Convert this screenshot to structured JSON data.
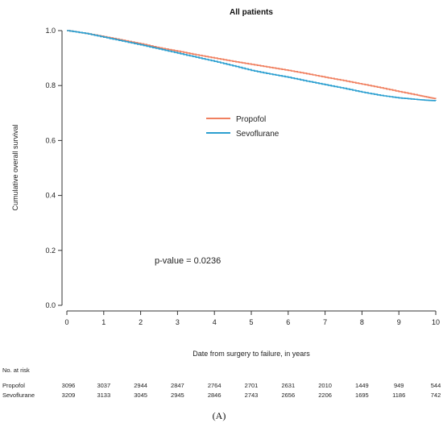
{
  "chart_data": {
    "type": "line",
    "title": "All patients",
    "xlabel": "Date from surgery to failure, in years",
    "ylabel": "Cumulative overall survival",
    "xlim": [
      0,
      10
    ],
    "ylim": [
      0,
      1
    ],
    "xticks": [
      "0",
      "1",
      "2",
      "3",
      "4",
      "5",
      "6",
      "7",
      "8",
      "9",
      "10"
    ],
    "yticks": [
      "0.0",
      "0.2",
      "0.4",
      "0.6",
      "0.8",
      "1.0"
    ],
    "legend_position": "center",
    "legend": [
      "Propofol",
      "Sevoflurane"
    ],
    "annotation": "p-value = 0.0236",
    "panel_label": "(A)",
    "series": [
      {
        "name": "Propofol",
        "color": "#f08060",
        "x": [
          0,
          0.5,
          1,
          1.5,
          2,
          2.5,
          3,
          3.5,
          4,
          4.5,
          5,
          5.5,
          6,
          6.5,
          7,
          7.5,
          8,
          8.5,
          9,
          9.5,
          9.8,
          10
        ],
        "y": [
          1.0,
          0.99,
          0.978,
          0.965,
          0.952,
          0.937,
          0.925,
          0.912,
          0.9,
          0.888,
          0.877,
          0.866,
          0.855,
          0.843,
          0.83,
          0.818,
          0.805,
          0.792,
          0.778,
          0.765,
          0.757,
          0.752
        ]
      },
      {
        "name": "Sevoflurane",
        "color": "#2b9fd0",
        "x": [
          0,
          0.5,
          1,
          1.5,
          2,
          2.5,
          3,
          3.5,
          4,
          4.5,
          5,
          5.5,
          6,
          6.5,
          7,
          7.5,
          8,
          8.5,
          9,
          9.5,
          9.8,
          10
        ],
        "y": [
          1.0,
          0.99,
          0.976,
          0.962,
          0.948,
          0.933,
          0.918,
          0.903,
          0.888,
          0.872,
          0.855,
          0.842,
          0.83,
          0.816,
          0.803,
          0.79,
          0.776,
          0.764,
          0.755,
          0.749,
          0.746,
          0.745
        ]
      }
    ],
    "risk_table": {
      "header": "No. at risk",
      "rows": [
        {
          "label": "Propofol",
          "values": [
            "3096",
            "3037",
            "2944",
            "2847",
            "2764",
            "2701",
            "2631",
            "2010",
            "1449",
            "949",
            "544"
          ]
        },
        {
          "label": "Sevoflurane",
          "values": [
            "3209",
            "3133",
            "3045",
            "2945",
            "2846",
            "2743",
            "2656",
            "2206",
            "1695",
            "1186",
            "742"
          ]
        }
      ]
    }
  }
}
